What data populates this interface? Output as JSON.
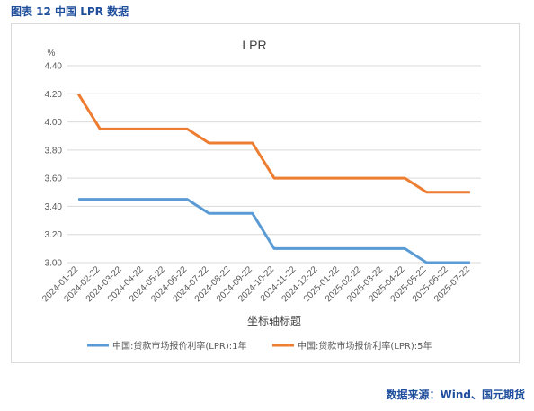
{
  "caption": "图表 12  中国 LPR 数据",
  "source": "数据来源：Wind、国元期货",
  "colors": {
    "series1": "#5b9bd5",
    "series2": "#ed7d31",
    "grid": "#d9d9d9",
    "text": "#595959"
  },
  "chart_data": {
    "type": "line",
    "title": "LPR",
    "ylabel": "%",
    "xlabel": "坐标轴标题",
    "ylim": [
      3.0,
      4.4
    ],
    "yticks": [
      "4.40",
      "4.20",
      "4.00",
      "3.80",
      "3.60",
      "3.40",
      "3.20",
      "3.00"
    ],
    "grid": true,
    "legend_position": "bottom",
    "categories": [
      "2024-01-22",
      "2024-02-22",
      "2024-03-22",
      "2024-04-22",
      "2024-05-22",
      "2024-06-22",
      "2024-07-22",
      "2024-08-22",
      "2024-09-22",
      "2024-10-22",
      "2024-11-22",
      "2024-12-22",
      "2025-01-22",
      "2025-02-22",
      "2025-03-22",
      "2025-04-22",
      "2025-05-22",
      "2025-06-22",
      "2025-07-22"
    ],
    "series": [
      {
        "name": "中国:贷款市场报价利率(LPR):1年",
        "color": "#5b9bd5",
        "values": [
          3.45,
          3.45,
          3.45,
          3.45,
          3.45,
          3.45,
          3.35,
          3.35,
          3.35,
          3.1,
          3.1,
          3.1,
          3.1,
          3.1,
          3.1,
          3.1,
          3.0,
          3.0,
          3.0
        ]
      },
      {
        "name": "中国:贷款市场报价利率(LPR):5年",
        "color": "#ed7d31",
        "values": [
          4.2,
          3.95,
          3.95,
          3.95,
          3.95,
          3.95,
          3.85,
          3.85,
          3.85,
          3.6,
          3.6,
          3.6,
          3.6,
          3.6,
          3.6,
          3.6,
          3.5,
          3.5,
          3.5
        ]
      }
    ]
  }
}
